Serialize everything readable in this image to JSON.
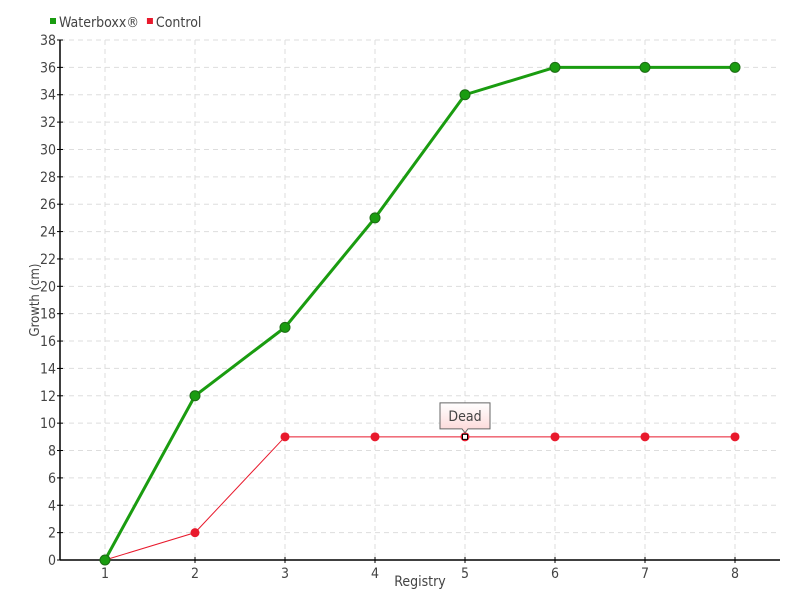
{
  "chart_data": {
    "type": "line",
    "title": "",
    "xlabel": "Registry",
    "ylabel": "Growth (cm)",
    "x": [
      1,
      2,
      3,
      4,
      5,
      6,
      7,
      8
    ],
    "xlim": [
      0.5,
      8.5
    ],
    "ylim": [
      0,
      38
    ],
    "yticks": [
      0,
      2,
      4,
      6,
      8,
      10,
      12,
      14,
      16,
      18,
      20,
      22,
      24,
      26,
      28,
      30,
      32,
      34,
      36,
      38
    ],
    "grid": true,
    "legend_position": "top-left",
    "series": [
      {
        "name": "Waterboxx®",
        "color": "#1a9c10",
        "values": [
          0,
          12,
          17,
          25,
          34,
          36,
          36,
          36
        ]
      },
      {
        "name": "Control",
        "color": "#e8192c",
        "values": [
          0,
          2,
          9,
          9,
          9,
          9,
          9,
          9
        ]
      }
    ],
    "annotations": [
      {
        "series": "Control",
        "x": 5,
        "y": 9,
        "text": "Dead"
      }
    ]
  }
}
